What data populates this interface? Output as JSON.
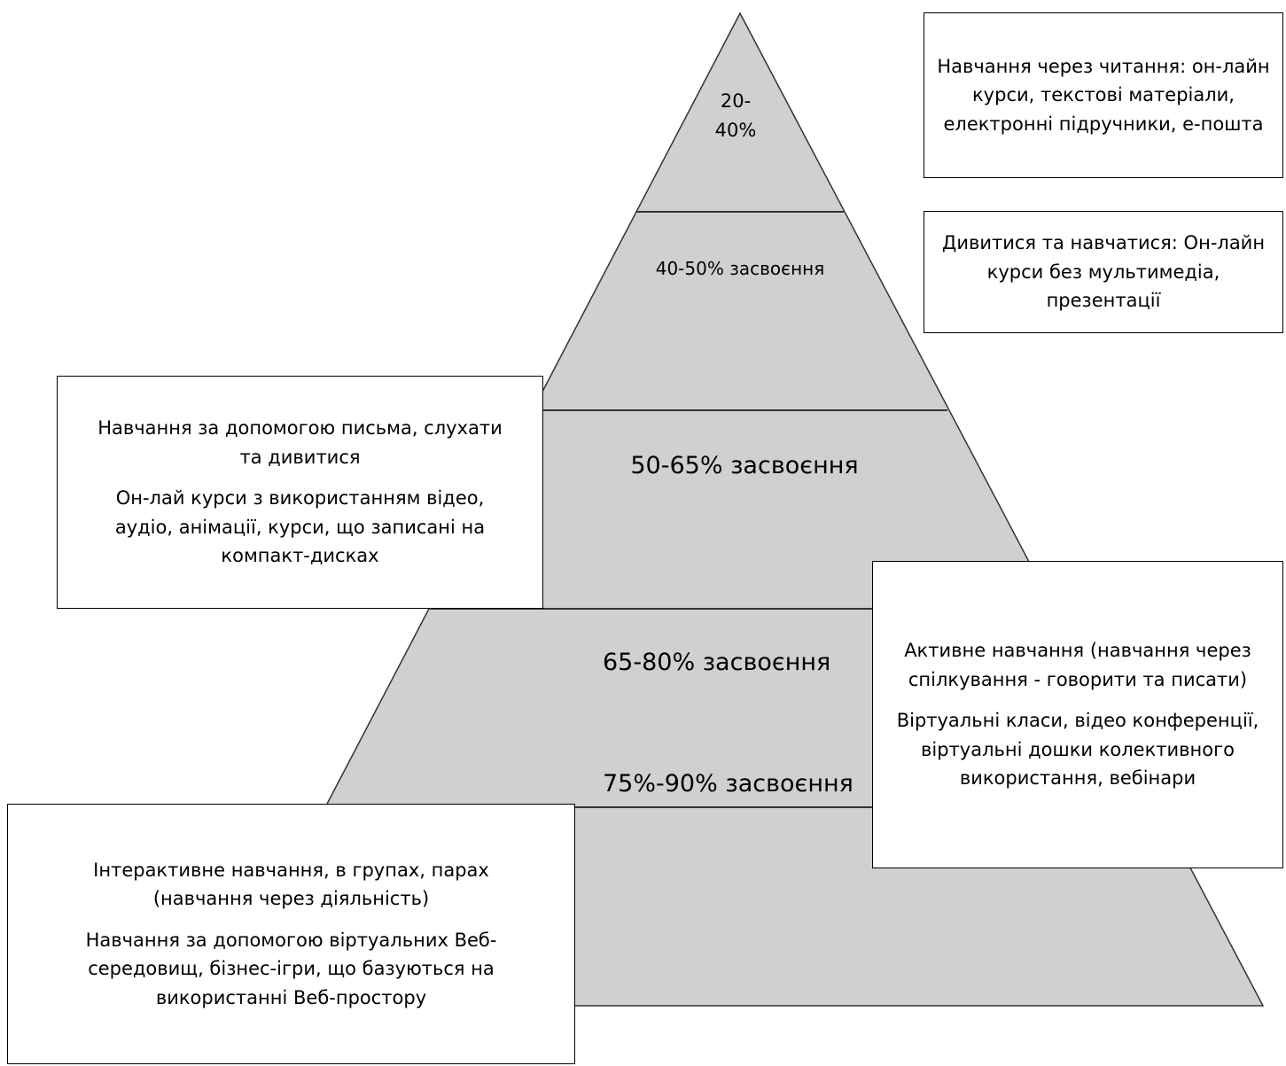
{
  "pyramid": {
    "fill": "#d0d0d0",
    "stroke": "#333333",
    "tiers": [
      {
        "label": "20-\n40%"
      },
      {
        "label": "40-50%  засвоєння"
      },
      {
        "label": "50-65%   засвоєння"
      },
      {
        "label": "65-80% засвоєння"
      },
      {
        "label": "75%-90% засвоєння"
      }
    ]
  },
  "boxes": {
    "reading": {
      "lines": [
        "Навчання через читання: он-лайн курси, текстові матеріали,  електронні підручники, е-пошта"
      ]
    },
    "watching": {
      "lines": [
        "Дивитися та навчатися: Он-лайн курси без мультимедіа, презентації"
      ]
    },
    "writing": {
      "lines": [
        "Навчання за допомогою письма, слухати та дивитися",
        "Он-лай курси з використанням відео, аудіо, анімації, курси, що записані на компакт-дисках"
      ]
    },
    "active": {
      "lines": [
        "Активне навчання (навчання через спілкування - говорити та писати)",
        "Віртуальні класи, відео конференції, віртуальні дошки колективного використання, вебінари"
      ]
    },
    "interactive": {
      "lines": [
        "Інтерактивне навчання, в групах, парах (навчання через діяльність)",
        "Навчання за допомогою віртуальних Веб-середовищ, бізнес-ігри, що базуються на використанні Веб-простору"
      ]
    }
  }
}
